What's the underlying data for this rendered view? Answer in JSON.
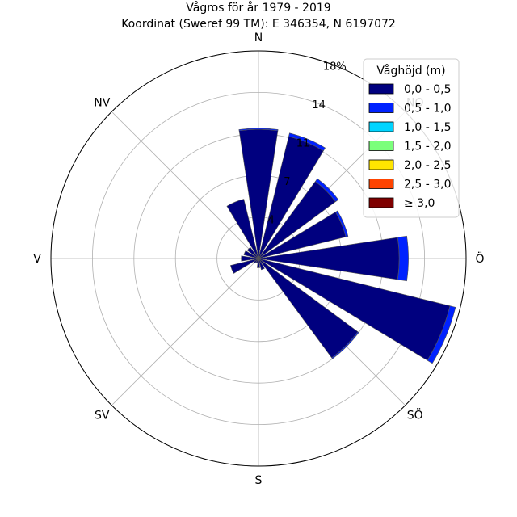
{
  "chart_data": {
    "type": "windrose",
    "title": "Vågros för år 1979 - 2019",
    "subtitle": "Koordinat (Sweref 99 TM): E 346354, N 6197072",
    "directions": [
      "N",
      "NO",
      "Ö",
      "SÖ",
      "S",
      "SV",
      "V",
      "NV"
    ],
    "direction_angles_deg": [
      0,
      45,
      90,
      135,
      180,
      225,
      270,
      315
    ],
    "ring_labels": [
      "4",
      "7",
      "11",
      "14",
      "18%"
    ],
    "ring_values": [
      3.6,
      7.2,
      10.8,
      14.4,
      18.0
    ],
    "rmax": 18,
    "legend_title": "Våghöjd (m)",
    "legend_placement": "top-right",
    "bins": [
      {
        "label": "0,0 - 0,5",
        "color": "#00007f"
      },
      {
        "label": "0,5 - 1,0",
        "color": "#0022ff"
      },
      {
        "label": "1,0 - 1,5",
        "color": "#00d4ff"
      },
      {
        "label": "1,5 - 2,0",
        "color": "#7bff7b"
      },
      {
        "label": "2,0 - 2,5",
        "color": "#ffe500"
      },
      {
        "label": "2,5 - 3,0",
        "color": "#ff4400"
      },
      {
        "label": "≥ 3,0",
        "color": "#7f0000"
      }
    ],
    "sector_directions_deg": [
      0,
      22.5,
      45,
      67.5,
      90,
      112.5,
      135,
      157.5,
      180,
      202.5,
      225,
      247.5,
      270,
      292.5,
      315,
      337.5
    ],
    "sectors": [
      [
        11.2,
        0.1,
        0,
        0,
        0,
        0,
        0
      ],
      [
        10.9,
        0.3,
        0,
        0,
        0,
        0,
        0
      ],
      [
        8.3,
        0.3,
        0,
        0,
        0,
        0,
        0
      ],
      [
        7.8,
        0.2,
        0,
        0,
        0,
        0,
        0
      ],
      [
        12.2,
        0.8,
        0,
        0,
        0,
        0,
        0
      ],
      [
        17.1,
        0.5,
        0,
        0,
        0,
        0,
        0
      ],
      [
        10.7,
        0.1,
        0,
        0,
        0,
        0,
        0
      ],
      [
        1.0,
        0,
        0,
        0,
        0,
        0,
        0
      ],
      [
        0.8,
        0,
        0,
        0,
        0,
        0,
        0
      ],
      [
        0.4,
        0,
        0,
        0,
        0,
        0,
        0
      ],
      [
        0.5,
        0,
        0,
        0,
        0,
        0,
        0
      ],
      [
        2.5,
        0,
        0,
        0,
        0,
        0,
        0
      ],
      [
        1.5,
        0,
        0,
        0,
        0,
        0,
        0
      ],
      [
        1.3,
        0,
        0,
        0,
        0,
        0,
        0
      ],
      [
        1.2,
        0,
        0,
        0,
        0,
        0,
        0
      ],
      [
        5.3,
        0,
        0,
        0,
        0,
        0,
        0
      ]
    ],
    "grid": true
  }
}
